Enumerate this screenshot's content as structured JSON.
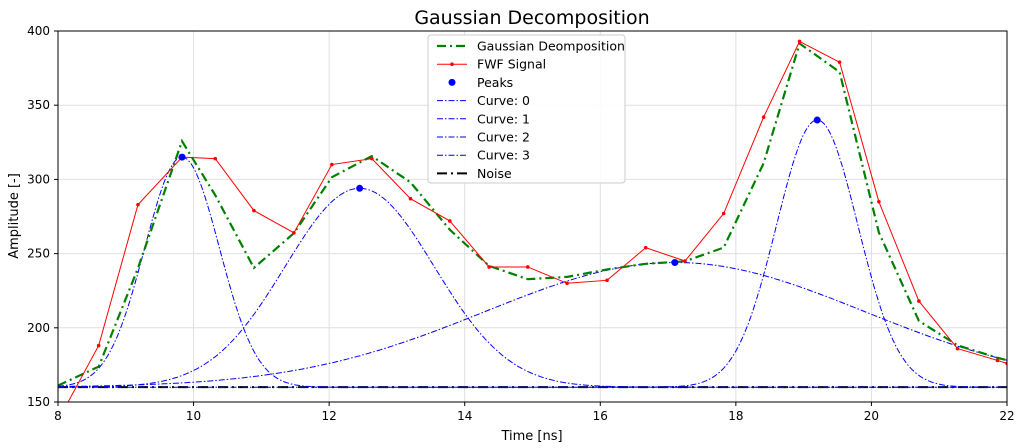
{
  "chart_data": {
    "type": "line",
    "title": "Gaussian Decomposition",
    "xlabel": "Time [ns]",
    "ylabel": "Amplitude [-]",
    "xlim": [
      8,
      22
    ],
    "ylim": [
      150,
      400
    ],
    "xticks": [
      8,
      10,
      12,
      14,
      16,
      18,
      20,
      22
    ],
    "yticks": [
      150,
      200,
      250,
      300,
      350,
      400
    ],
    "grid": true,
    "legend_position": "top-center",
    "noise_level": 160,
    "signal": {
      "name": "FWF Signal",
      "x": [
        8.03,
        8.6,
        9.18,
        9.83,
        10.32,
        10.89,
        11.48,
        12.04,
        12.63,
        13.2,
        13.78,
        14.36,
        14.93,
        15.51,
        16.1,
        16.67,
        17.25,
        17.82,
        18.41,
        18.94,
        19.53,
        20.11,
        20.7,
        21.27,
        21.86,
        22.0
      ],
      "y": [
        140,
        188,
        283,
        315,
        314,
        279,
        264,
        310,
        314,
        287,
        272,
        241,
        241,
        230,
        232,
        254,
        245,
        277,
        342,
        393,
        379,
        285,
        218,
        186,
        178,
        176
      ]
    },
    "gaussians": [
      {
        "name": "Curve: 0",
        "center": 9.83,
        "peak": 315,
        "sigma": 0.55
      },
      {
        "name": "Curve: 1",
        "center": 12.45,
        "peak": 294,
        "sigma": 1.1
      },
      {
        "name": "Curve: 2",
        "center": 17.1,
        "peak": 244,
        "sigma": 2.8
      },
      {
        "name": "Curve: 3",
        "center": 19.2,
        "peak": 340,
        "sigma": 0.6
      }
    ],
    "fit_x": [
      8.0,
      8.6,
      9.18,
      9.83,
      10.32,
      10.89,
      11.48,
      12.04,
      12.63,
      13.2,
      13.78,
      14.36,
      14.93,
      15.51,
      16.1,
      16.67,
      17.25,
      17.82,
      18.41,
      18.94,
      19.53,
      20.11,
      20.7,
      21.27,
      21.86,
      22.0
    ],
    "legend": [
      "Gaussian Deomposition",
      "FWF Signal",
      "Peaks",
      "Curve: 0",
      "Curve: 1",
      "Curve: 2",
      "Curve: 3",
      "Noise"
    ],
    "colors": {
      "fit": "#008000",
      "signal": "#ff0000",
      "peaks": "#0000ff",
      "curves": "#0000ff",
      "noise": "#000000"
    }
  }
}
